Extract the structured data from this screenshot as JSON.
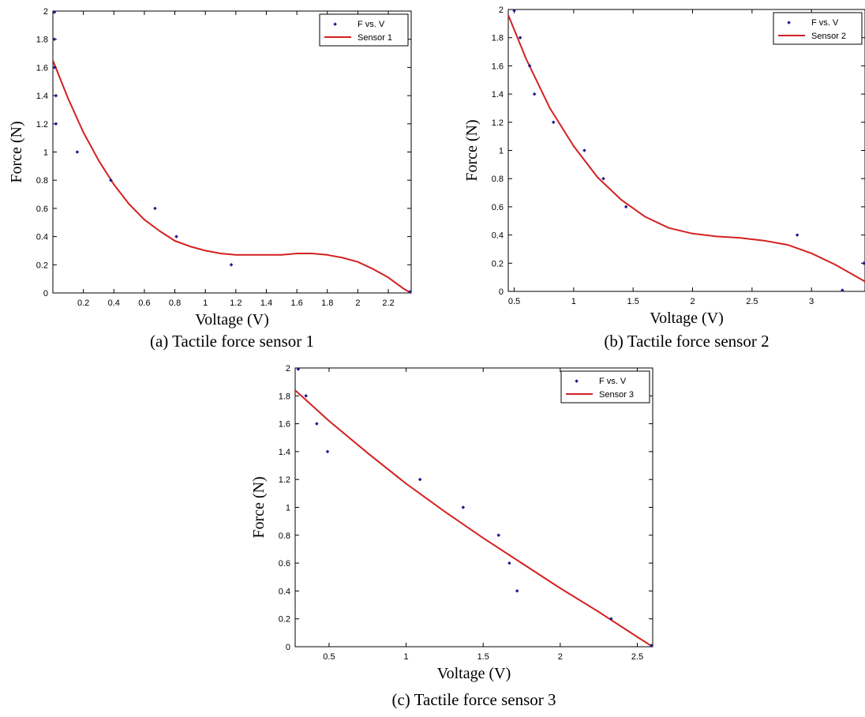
{
  "chart_data": [
    {
      "type": "scatter",
      "caption": "(a) Tactile force sensor 1",
      "xlabel": "Voltage (V)",
      "ylabel": "Force (N)",
      "xlim": [
        0,
        2.35
      ],
      "ylim": [
        0,
        2
      ],
      "xticks": [
        0.2,
        0.4,
        0.6,
        0.8,
        1,
        1.2,
        1.4,
        1.6,
        1.8,
        2,
        2.2
      ],
      "yticks": [
        0,
        0.2,
        0.4,
        0.6,
        0.8,
        1,
        1.2,
        1.4,
        1.6,
        1.8,
        2
      ],
      "legend": {
        "position": "top-right",
        "entries": [
          "F vs. V",
          "Sensor 1"
        ]
      },
      "colors": {
        "points": "#1a1a8c",
        "fit": "#d42020"
      },
      "points": {
        "name": "F vs. V",
        "x": [
          0.01,
          0.01,
          0.01,
          0.02,
          0.02,
          0.16,
          0.38,
          0.67,
          0.81,
          1.17,
          2.35
        ],
        "y": [
          2.0,
          1.8,
          1.6,
          1.4,
          1.2,
          1.0,
          0.8,
          0.6,
          0.4,
          0.2,
          0.0
        ]
      },
      "fit": {
        "name": "Sensor 1",
        "x": [
          0,
          0.1,
          0.2,
          0.3,
          0.4,
          0.5,
          0.6,
          0.7,
          0.8,
          0.9,
          1.0,
          1.1,
          1.2,
          1.3,
          1.4,
          1.5,
          1.6,
          1.7,
          1.8,
          1.9,
          2.0,
          2.1,
          2.2,
          2.3,
          2.35
        ],
        "y": [
          1.65,
          1.38,
          1.14,
          0.94,
          0.77,
          0.63,
          0.52,
          0.44,
          0.37,
          0.33,
          0.3,
          0.28,
          0.27,
          0.27,
          0.27,
          0.27,
          0.28,
          0.28,
          0.27,
          0.25,
          0.22,
          0.17,
          0.11,
          0.03,
          0.0
        ]
      }
    },
    {
      "type": "scatter",
      "caption": "(b) Tactile force sensor 2",
      "xlabel": "Voltage (V)",
      "ylabel": "Force (N)",
      "xlim": [
        0.45,
        3.45
      ],
      "ylim": [
        0,
        2
      ],
      "xticks": [
        0.5,
        1,
        1.5,
        2,
        2.5,
        3
      ],
      "yticks": [
        0,
        0.2,
        0.4,
        0.6,
        0.8,
        1,
        1.2,
        1.4,
        1.6,
        1.8,
        2
      ],
      "legend": {
        "position": "top-right",
        "entries": [
          "F vs. V",
          "Sensor 2"
        ]
      },
      "colors": {
        "points": "#1a1a8c",
        "fit": "#d42020"
      },
      "points": {
        "name": "F vs. V",
        "x": [
          0.5,
          0.55,
          0.63,
          0.67,
          0.83,
          1.09,
          1.25,
          1.44,
          2.88,
          3.26,
          3.45
        ],
        "y": [
          2.0,
          1.8,
          1.6,
          1.4,
          1.2,
          1.0,
          0.8,
          0.6,
          0.4,
          0.0,
          0.2
        ]
      },
      "fit": {
        "name": "Sensor 2",
        "x": [
          0.45,
          0.6,
          0.8,
          1.0,
          1.2,
          1.4,
          1.6,
          1.8,
          2.0,
          2.2,
          2.4,
          2.6,
          2.8,
          3.0,
          3.2,
          3.45
        ],
        "y": [
          1.96,
          1.65,
          1.3,
          1.03,
          0.81,
          0.65,
          0.53,
          0.45,
          0.41,
          0.39,
          0.38,
          0.36,
          0.33,
          0.27,
          0.19,
          0.07
        ]
      }
    },
    {
      "type": "scatter",
      "caption": "(c) Tactile force sensor 3",
      "xlabel": "Voltage (V)",
      "ylabel": "Force (N)",
      "xlim": [
        0.28,
        2.6
      ],
      "ylim": [
        0,
        2
      ],
      "xticks": [
        0.5,
        1,
        1.5,
        2,
        2.5
      ],
      "yticks": [
        0,
        0.2,
        0.4,
        0.6,
        0.8,
        1,
        1.2,
        1.4,
        1.6,
        1.8,
        2
      ],
      "legend": {
        "position": "top-right",
        "entries": [
          "F vs. V",
          "Sensor 3"
        ]
      },
      "colors": {
        "points": "#1a1a8c",
        "fit": "#d42020"
      },
      "points": {
        "name": "F vs. V",
        "x": [
          0.3,
          0.35,
          0.42,
          0.49,
          1.09,
          1.37,
          1.6,
          1.67,
          1.72,
          2.33,
          2.6
        ],
        "y": [
          2.0,
          1.8,
          1.6,
          1.4,
          1.2,
          1.0,
          0.8,
          0.6,
          0.4,
          0.2,
          0.0
        ]
      },
      "fit": {
        "name": "Sensor 3",
        "x": [
          0.28,
          0.5,
          0.75,
          1.0,
          1.25,
          1.5,
          1.75,
          2.0,
          2.25,
          2.5,
          2.6
        ],
        "y": [
          1.84,
          1.62,
          1.39,
          1.17,
          0.97,
          0.78,
          0.6,
          0.42,
          0.25,
          0.07,
          0.0
        ]
      }
    }
  ]
}
